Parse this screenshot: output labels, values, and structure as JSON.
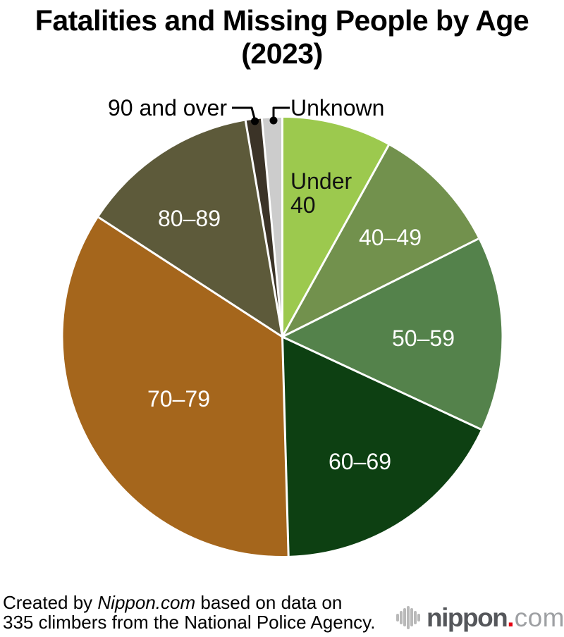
{
  "title": {
    "line1": "Fatalities and Missing People by Age",
    "line2": "(2023)"
  },
  "chart_data": {
    "type": "pie",
    "title": "Fatalities and Missing People by Age (2023)",
    "total": 335,
    "unit": "climbers",
    "categories": [
      "Under 40",
      "40–49",
      "50–59",
      "60–69",
      "70–79",
      "80–89",
      "90 and over",
      "Unknown"
    ],
    "values": [
      27,
      32,
      48,
      59,
      116,
      44,
      4,
      5
    ],
    "colors": [
      "#9cc94e",
      "#72914d",
      "#54824b",
      "#0d4012",
      "#a5661c",
      "#5d5a3a",
      "#3b3327",
      "#cccccc"
    ],
    "slugs": [
      "under-40",
      "40-49",
      "50-59",
      "60-69",
      "70-79",
      "80-89",
      "90-and-over",
      "unknown"
    ],
    "start_angle_deg": 0,
    "direction": "clockwise",
    "border_color": "#ffffff",
    "label_color_inside_light": "#ffffff",
    "label_color_dark": "#000000"
  },
  "pie_labels": {
    "under40_line1": "Under",
    "under40_line2": "40"
  },
  "footer": {
    "line1_prefix": "Created by ",
    "brand": "Nippon.com",
    "line1_suffix": " based on data on",
    "line2": "335 climbers from the National Police Agency."
  },
  "logo": {
    "wordmark_bold": "nippon",
    "wordmark_dot": ".",
    "wordmark_light": "com",
    "bars_color": "#b9b9b9",
    "text_dark_color": "#55575b",
    "dot_color": "#e60012",
    "text_light_color": "#9ea0a3"
  }
}
